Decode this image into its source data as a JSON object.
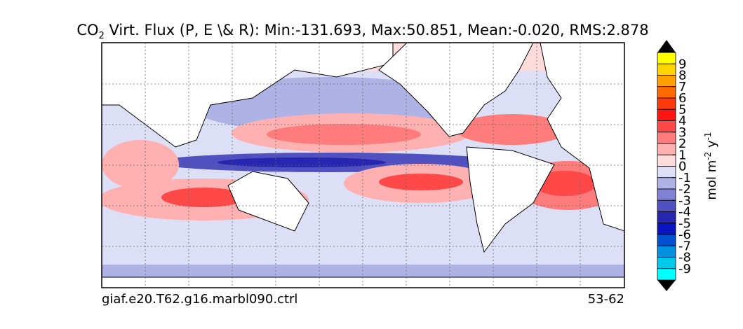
{
  "header": {
    "title_prefix": "CO",
    "title_subscript": "2",
    "title_rest": " Virt. Flux (P, E \\& R): Min:-131.693, Max:50.851, Mean:-0.020, RMS:2.878"
  },
  "footer": {
    "case": "giaf.e20.T62.g16.marbl090.ctrl",
    "years": "53-62"
  },
  "colorbar": {
    "ticks": [
      9,
      8,
      7,
      6,
      5,
      4,
      3,
      2,
      1,
      0,
      -1,
      -2,
      -3,
      -4,
      -5,
      -6,
      -7,
      -8,
      -9
    ],
    "colors": [
      "#ffff00",
      "#ffd400",
      "#ffa000",
      "#ff6a00",
      "#ff3a0a",
      "#ff1414",
      "#ff4848",
      "#ff7c7c",
      "#ffb0b0",
      "#ffdcdc",
      "#dcdff5",
      "#aeb2e4",
      "#7f82d2",
      "#5050c0",
      "#2626b0",
      "#0a14c0",
      "#0050d2",
      "#0090e0",
      "#00c8ea",
      "#00ffff"
    ],
    "extend_color": "#000000",
    "label_parts": [
      "mol m",
      "-2",
      " y",
      "-1"
    ]
  }
}
